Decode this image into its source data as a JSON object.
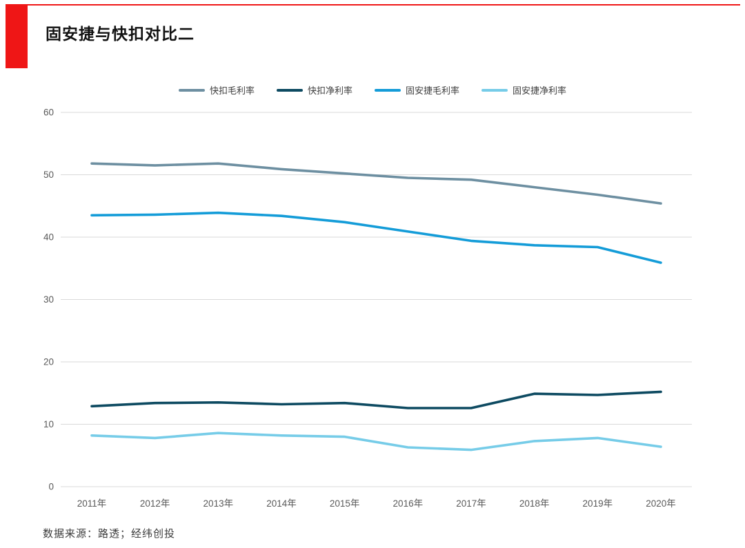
{
  "page": {
    "title": "固安捷与快扣对比二",
    "source": "数据来源：路透；经纬创投",
    "accent_color": "#ef1616"
  },
  "chart_data": {
    "type": "line",
    "x": [
      "2011年",
      "2012年",
      "2013年",
      "2014年",
      "2015年",
      "2016年",
      "2017年",
      "2018年",
      "2019年",
      "2020年"
    ],
    "series": [
      {
        "name": "快扣毛利率",
        "color": "#6d8fa1",
        "values": [
          51.8,
          51.5,
          51.8,
          50.9,
          50.2,
          49.5,
          49.2,
          48.0,
          46.8,
          45.4
        ]
      },
      {
        "name": "快扣净利率",
        "color": "#0d4a61",
        "values": [
          12.9,
          13.4,
          13.5,
          13.2,
          13.4,
          12.6,
          12.6,
          14.9,
          14.7,
          15.2
        ]
      },
      {
        "name": "固安捷毛利率",
        "color": "#149cd8",
        "values": [
          43.5,
          43.6,
          43.9,
          43.4,
          42.4,
          40.9,
          39.4,
          38.7,
          38.4,
          35.9
        ]
      },
      {
        "name": "固安捷净利率",
        "color": "#76cce8",
        "values": [
          8.2,
          7.8,
          8.6,
          8.2,
          8.0,
          6.3,
          5.9,
          7.3,
          7.8,
          6.4
        ]
      }
    ],
    "title": "",
    "xlabel": "",
    "ylabel": "",
    "ylim": [
      0,
      60
    ],
    "ytick_step": 10,
    "yticks": [
      "0",
      "10",
      "20",
      "30",
      "40",
      "50",
      "60"
    ],
    "grid": "horizontal",
    "gridline_color": "#d9d9d9",
    "tick_label_color": "#595959",
    "legend_position": "top-center"
  }
}
